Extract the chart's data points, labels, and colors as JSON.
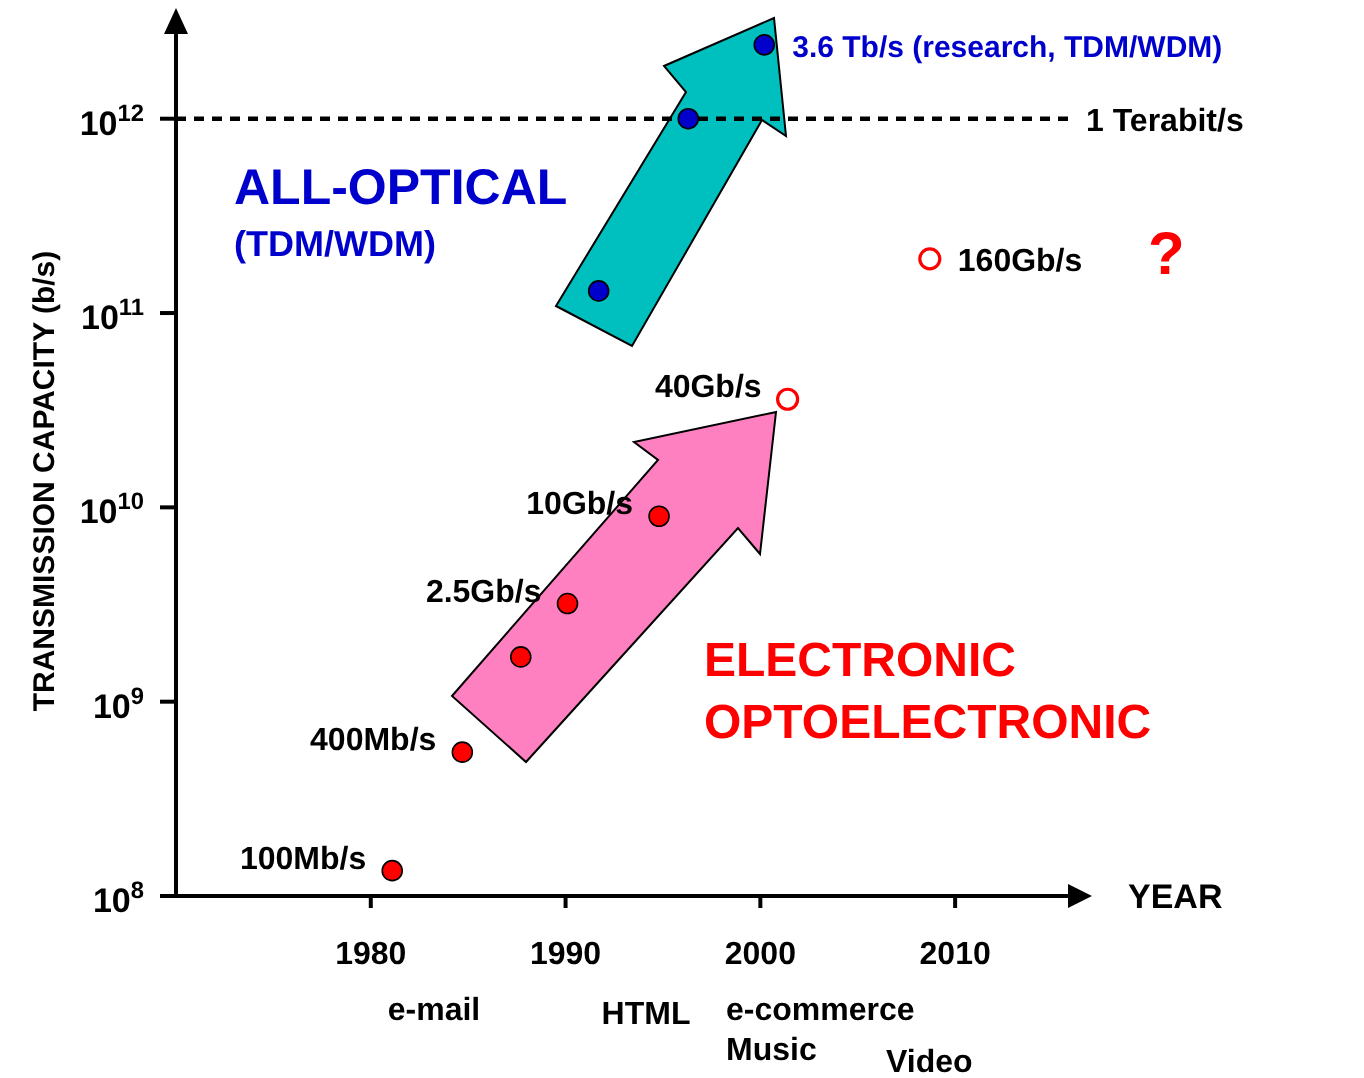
{
  "chart_data": {
    "type": "scatter",
    "ylabel": "TRANSMISSION CAPACITY (b/s)",
    "xlabel": "YEAR",
    "xlim": [
      1970,
      2016
    ],
    "xticks": [
      1980,
      1990,
      2000,
      2010
    ],
    "ylim": [
      100000000.0,
      3000000000000.0
    ],
    "yticks": [
      {
        "value": 100000000.0,
        "label": "10$^{8}$"
      },
      {
        "value": 1000000000.0,
        "label": "10$^{9}$"
      },
      {
        "value": 10000000000.0,
        "label": "10$^{10}$"
      },
      {
        "value": 100000000000.0,
        "label": "10$^{11}$"
      },
      {
        "value": 1000000000000.0,
        "label": "10$^{12}$"
      }
    ],
    "log": "y",
    "grid": false,
    "legend": false,
    "marker": "circle",
    "series": [
      {
        "color": "#ff0000",
        "x": [
          1981.1,
          1984.7,
          1987.7,
          1990.1,
          1994.8
        ],
        "values": [
          135000000.0,
          550000000.0,
          1700000000.0,
          3200000000.0,
          9000000000.0
        ]
      },
      {
        "color": "#ff0000",
        "x": [
          2001.4,
          2008.7
        ],
        "values": [
          36000000000.0,
          190000000000.0
        ]
      },
      {
        "color": "#0000cc",
        "x": [
          1991.7,
          1996.3,
          2000.2
        ],
        "values": [
          130000000000.0,
          1000000000000.0,
          2400000000000.0
        ]
      }
    ],
    "ref_lines": [
      {
        "axis": "y",
        "value": 1000000000000.0,
        "label": "1 Terabit/s",
        "line_style": "dashed",
        "color": "#000000"
      }
    ],
    "annotations": [
      "ALL-OPTICAL",
      "(TDM/WDM)",
      "ELECTRONIC",
      "OPTOELECTRONIC",
      "?",
      "e-mail",
      "HTML",
      "e-commerce",
      "Music",
      "Video",
      {
        "text": "100Mb/s",
        "x": 1981.1,
        "y": 135000000.0
      },
      {
        "text": "400Mb/s",
        "x": 1984.7,
        "y": 550000000.0
      },
      {
        "text": "2.5Gb/s",
        "x": 1990.1,
        "y": 3200000000.0
      },
      {
        "text": "10Gb/s",
        "x": 1994.8,
        "y": 9000000000.0
      },
      {
        "text": "40Gb/s",
        "x": 2001.4,
        "y": 36000000000.0
      },
      {
        "text": "160Gb/s",
        "x": 2008.7,
        "y": 190000000000.0
      },
      {
        "text": "3.6 Tb/s (research, TDM/WDM)",
        "x": 2000.2,
        "y": 2400000000000.0
      }
    ]
  }
}
